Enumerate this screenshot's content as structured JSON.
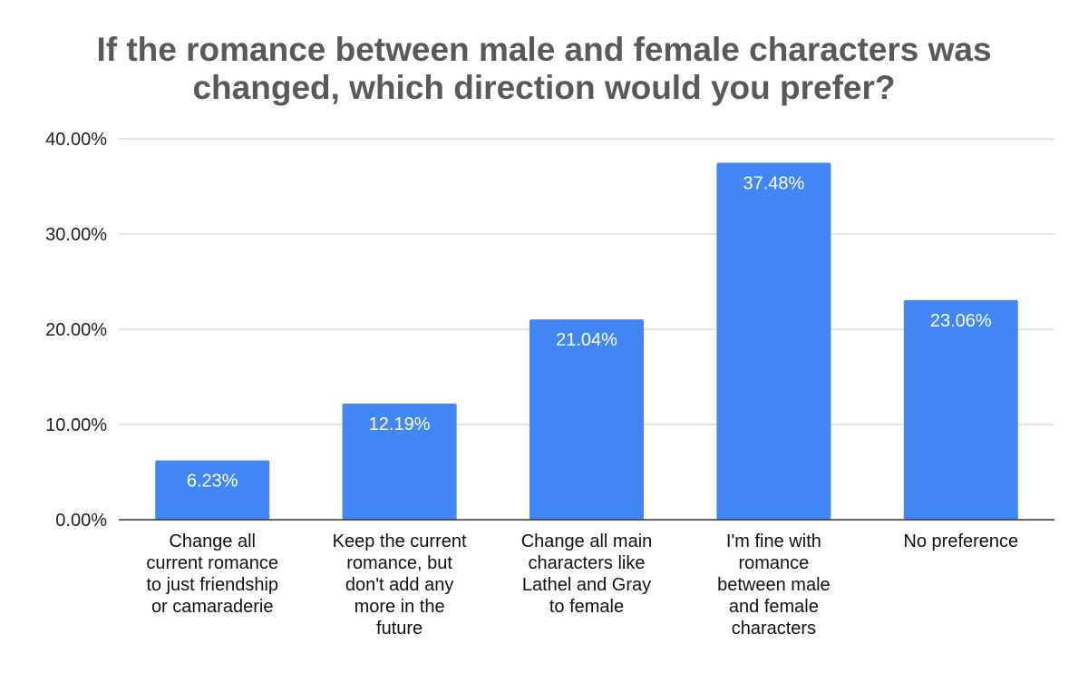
{
  "chart_data": {
    "type": "bar",
    "title_lines": [
      "If the romance between male and female characters was",
      "changed, which direction would you prefer?"
    ],
    "xlabel": "",
    "ylabel": "",
    "ylim": [
      0,
      40
    ],
    "y_ticks": [
      0,
      10,
      20,
      30,
      40
    ],
    "y_tick_labels": [
      "0.00%",
      "10.00%",
      "20.00%",
      "30.00%",
      "40.00%"
    ],
    "grid": true,
    "legend": "none",
    "bar_color": "#4285f4",
    "categories": [
      [
        "Change all",
        "current romance",
        "to just friendship",
        "or camaraderie"
      ],
      [
        "Keep the current",
        "romance, but",
        "don't add any",
        "more in the",
        "future"
      ],
      [
        "Change all main",
        "characters like",
        "Lathel and Gray",
        "to female"
      ],
      [
        "I'm fine with",
        "romance",
        "between male",
        "and female",
        "characters"
      ],
      [
        "No preference"
      ]
    ],
    "values": [
      6.23,
      12.19,
      21.04,
      37.48,
      23.06
    ],
    "data_labels": [
      "6.23%",
      "12.19%",
      "21.04%",
      "37.48%",
      "23.06%"
    ]
  }
}
